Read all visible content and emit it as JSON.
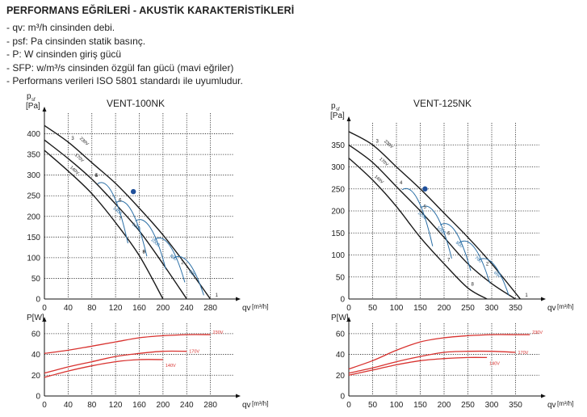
{
  "header": {
    "title": "PERFORMANS EĞRİLERİ - AKUSTİK KARAKTERİSTİKLERİ",
    "notes": [
      "- qv: m³/h cinsinden debi.",
      "- psf: Pa cinsinden statik basınç.",
      "- P: W cinsinden giriş gücü",
      "- SFP: w/m³/s cinsinden özgül fan gücü (mavi eğriler)",
      "- Performans verileri ISO 5801 standardı ile uyumludur."
    ]
  },
  "colors": {
    "curve": "#1a1a1a",
    "sfp": "#2b6fa6",
    "power": "#d8322f",
    "grid": "#222222",
    "point": "#1f4f9a"
  },
  "chart_data": [
    {
      "type": "line",
      "title": "VENT-100NK",
      "ylabel_top": "p",
      "ylabel_sub": "sf",
      "yunit": "[Pa]",
      "xlabel": "qv",
      "xunit": "[m³/h]",
      "xlim": [
        0,
        320
      ],
      "ylim": [
        0,
        450
      ],
      "xticks": [
        0,
        40,
        80,
        120,
        160,
        200,
        240,
        280
      ],
      "yticks": [
        0,
        50,
        100,
        150,
        200,
        250,
        300,
        350,
        400
      ],
      "series": [
        {
          "name": "230V",
          "x": [
            0,
            40,
            80,
            120,
            160,
            200,
            240,
            280
          ],
          "y": [
            420,
            380,
            330,
            280,
            220,
            155,
            80,
            0
          ]
        },
        {
          "name": "170V",
          "x": [
            0,
            40,
            80,
            120,
            160,
            200,
            240
          ],
          "y": [
            385,
            340,
            290,
            230,
            165,
            85,
            0
          ]
        },
        {
          "name": "140V",
          "x": [
            0,
            40,
            80,
            120,
            160,
            200
          ],
          "y": [
            360,
            310,
            255,
            185,
            105,
            0
          ]
        }
      ],
      "sfp_labels": [
        "1400",
        "1200",
        "1000",
        "800",
        "600"
      ],
      "point_labels": [
        "1",
        "2",
        "3",
        "4",
        "5",
        "6",
        "7",
        "8",
        "9"
      ],
      "operating_point": {
        "x": 150,
        "y": 260
      },
      "power": {
        "ylabel": "P[W]",
        "ylim": [
          0,
          70
        ],
        "yticks": [
          0,
          20,
          40,
          60
        ],
        "series": [
          {
            "name": "230V",
            "x": [
              0,
              40,
              80,
              120,
              160,
              200,
              240,
              280
            ],
            "y": [
              41,
              44,
              48,
              52,
              56,
              58,
              59,
              59
            ]
          },
          {
            "name": "170V",
            "x": [
              0,
              40,
              80,
              120,
              160,
              200,
              240
            ],
            "y": [
              22,
              28,
              33,
              38,
              41,
              43,
              43
            ]
          },
          {
            "name": "140V",
            "x": [
              0,
              40,
              80,
              120,
              160,
              200
            ],
            "y": [
              18,
              24,
              29,
              33,
              35,
              35
            ]
          }
        ]
      }
    },
    {
      "type": "line",
      "title": "VENT-125NK",
      "ylabel_top": "p",
      "ylabel_sub": "sf",
      "yunit": "[Pa]",
      "xlabel": "qv",
      "xunit": "[m³/h]",
      "xlim": [
        0,
        400
      ],
      "ylim": [
        0,
        400
      ],
      "xticks": [
        0,
        50,
        100,
        150,
        200,
        250,
        300,
        350
      ],
      "yticks": [
        0,
        50,
        100,
        150,
        200,
        250,
        300,
        350
      ],
      "series": [
        {
          "name": "230V",
          "x": [
            0,
            50,
            100,
            150,
            200,
            250,
            300,
            360
          ],
          "y": [
            380,
            350,
            300,
            250,
            195,
            140,
            80,
            0
          ]
        },
        {
          "name": "170V",
          "x": [
            0,
            50,
            100,
            150,
            200,
            250,
            300,
            350
          ],
          "y": [
            350,
            310,
            255,
            200,
            140,
            80,
            35,
            0
          ]
        },
        {
          "name": "140V",
          "x": [
            0,
            50,
            100,
            150,
            200,
            250,
            290
          ],
          "y": [
            320,
            270,
            210,
            140,
            80,
            25,
            0
          ]
        }
      ],
      "sfp_labels": [
        "1200",
        "1000",
        "800",
        "700",
        "650"
      ],
      "point_labels": [
        "1",
        "2",
        "3",
        "4",
        "5",
        "6",
        "7",
        "8"
      ],
      "operating_point": {
        "x": 160,
        "y": 250
      },
      "power": {
        "ylabel": "P[W]",
        "ylim": [
          0,
          70
        ],
        "yticks": [
          0,
          20,
          40,
          60
        ],
        "series": [
          {
            "name": "230V",
            "x": [
              0,
              50,
              100,
              150,
              200,
              250,
              300,
              350,
              380
            ],
            "y": [
              26,
              34,
              44,
              52,
              56,
              58,
              59,
              59,
              59
            ]
          },
          {
            "name": "170V",
            "x": [
              0,
              50,
              100,
              150,
              200,
              250,
              300,
              350
            ],
            "y": [
              22,
              27,
              33,
              38,
              42,
              43,
              43,
              42
            ]
          },
          {
            "name": "140V",
            "x": [
              0,
              50,
              100,
              150,
              200,
              250,
              290
            ],
            "y": [
              20,
              25,
              30,
              34,
              36,
              37,
              37
            ]
          }
        ]
      }
    }
  ]
}
